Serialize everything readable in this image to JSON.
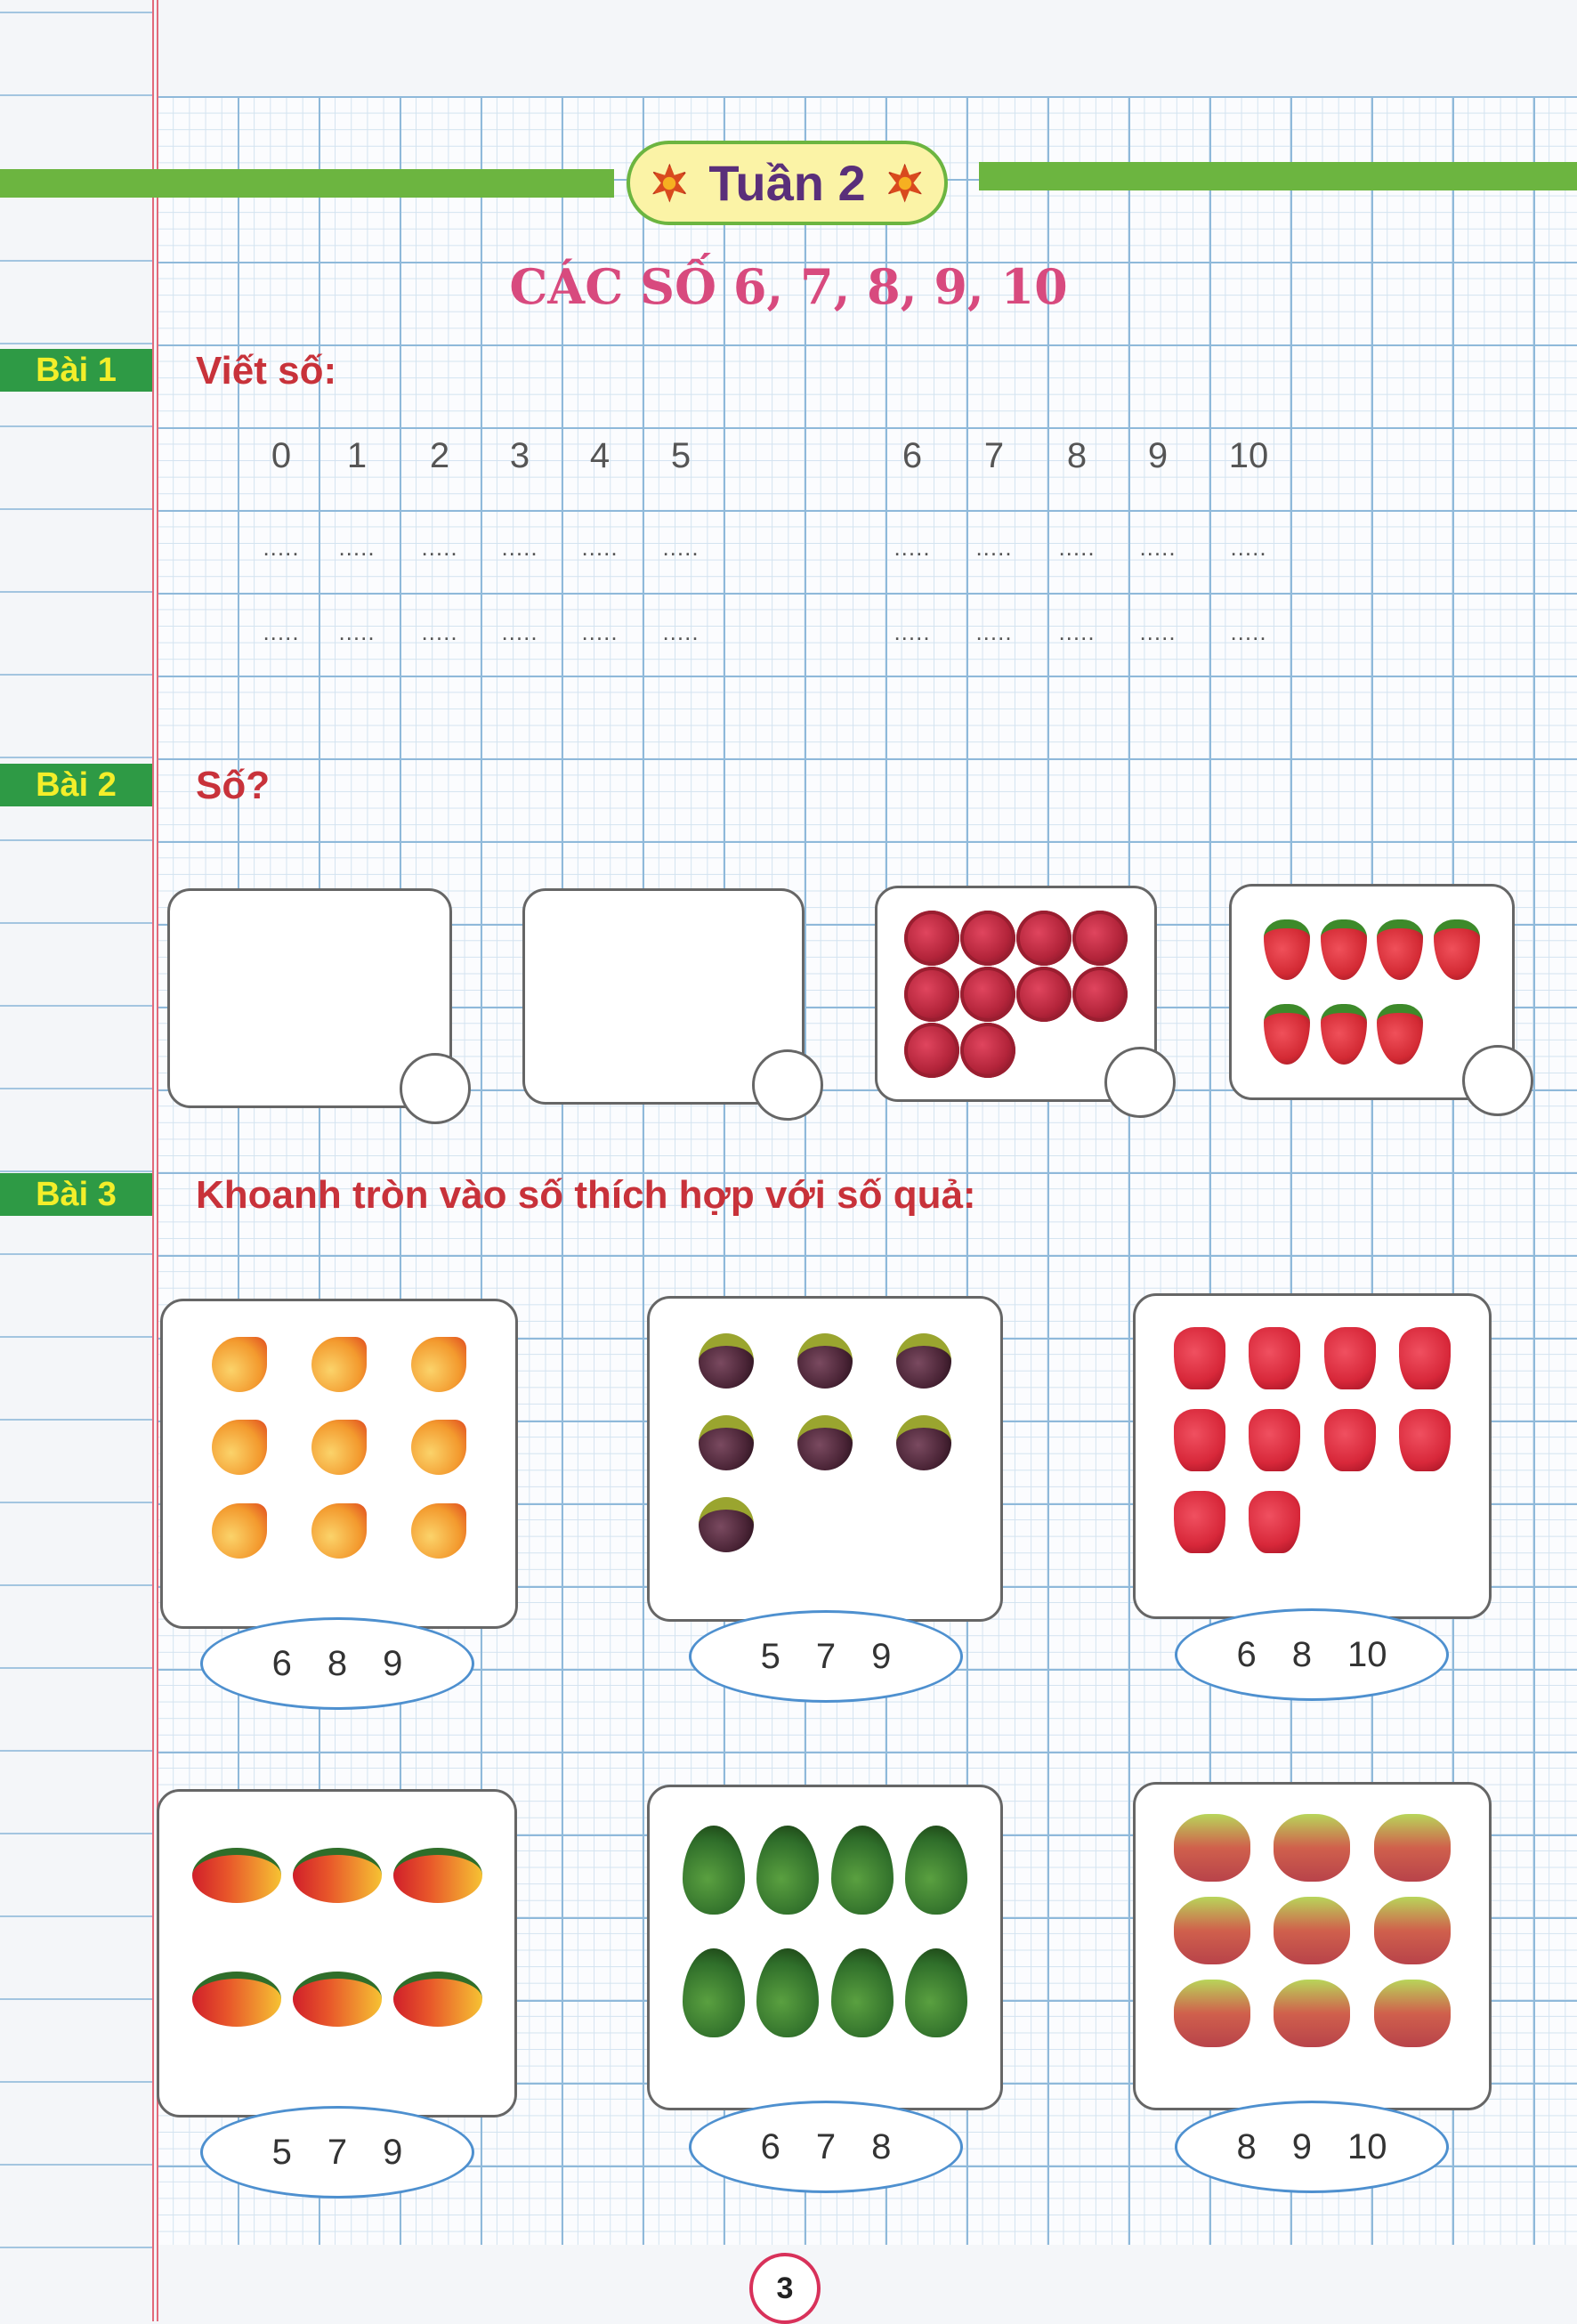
{
  "header": {
    "week": "Tuần 2",
    "title": "CÁC SỐ 6, 7, 8, 9, 10"
  },
  "bai1": {
    "label": "Bài 1",
    "instruction": "Viết số:",
    "numbers": [
      "0",
      "1",
      "2",
      "3",
      "4",
      "5",
      "6",
      "7",
      "8",
      "9",
      "10"
    ],
    "blank": "....."
  },
  "bai2": {
    "label": "Bài 2",
    "instruction": "Số?",
    "boxes": [
      {
        "fruit": "empty",
        "count": 0
      },
      {
        "fruit": "empty",
        "count": 0
      },
      {
        "fruit": "rambutan",
        "count": 10,
        "cols": 4,
        "color": "#b3243a"
      },
      {
        "fruit": "strawberry",
        "count": 7,
        "cols": 4,
        "color": "#d32a34"
      }
    ]
  },
  "bai3": {
    "label": "Bài 3",
    "instruction": "Khoanh tròn vào số thích hợp với số quả:",
    "items": [
      {
        "fruit": "peach",
        "count": 9,
        "cols": 3,
        "color": "#f39a2e",
        "options": [
          "6",
          "8",
          "9"
        ]
      },
      {
        "fruit": "mangosteen",
        "count": 7,
        "cols": 3,
        "color": "#4a2436",
        "options": [
          "5",
          "7",
          "9"
        ]
      },
      {
        "fruit": "rose-apple",
        "count": 10,
        "cols": 4,
        "color": "#d8283a",
        "options": [
          "6",
          "8",
          "10"
        ]
      },
      {
        "fruit": "mango",
        "count": 6,
        "cols": 3,
        "color": "#e8562a",
        "options": [
          "5",
          "7",
          "9"
        ]
      },
      {
        "fruit": "avocado",
        "count": 8,
        "cols": 4,
        "color": "#2f6e2a",
        "options": [
          "6",
          "7",
          "8"
        ]
      },
      {
        "fruit": "apple",
        "count": 9,
        "cols": 3,
        "color": "#b8434a",
        "options": [
          "8",
          "9",
          "10"
        ]
      }
    ]
  },
  "page_number": "3"
}
